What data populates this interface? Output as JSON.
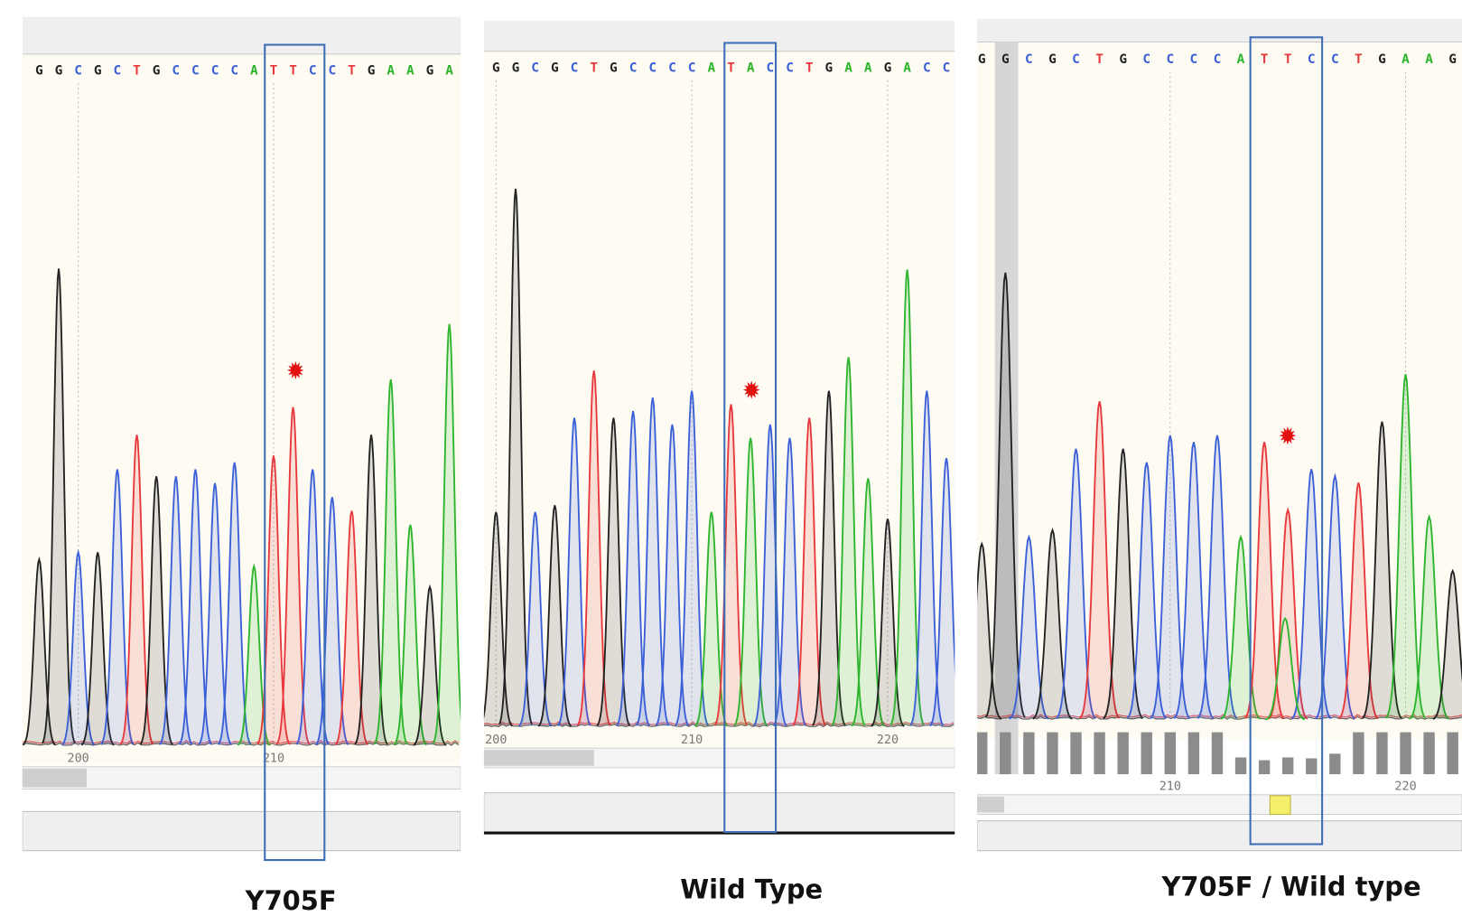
{
  "base_colors": {
    "A": "#2cb52c",
    "C": "#3b5fd8",
    "G": "#222222",
    "T": "#e8383c"
  },
  "panels": [
    {
      "label": "Y705F",
      "sequence": [
        "G",
        "G",
        "C",
        "G",
        "C",
        "T",
        "G",
        "C",
        "C",
        "C",
        "C",
        "A",
        "T",
        "T",
        "C",
        "C",
        "T",
        "G",
        "A",
        "A",
        "G",
        "A"
      ],
      "peaks": [
        27,
        69,
        28,
        28,
        40,
        45,
        39,
        39,
        40,
        38,
        41,
        26,
        42,
        49,
        40,
        36,
        34,
        45,
        53,
        32,
        23,
        61
      ],
      "positions": [
        200,
        210
      ]
    },
    {
      "label": "Wild Type",
      "sequence": [
        "G",
        "G",
        "C",
        "G",
        "C",
        "T",
        "G",
        "C",
        "C",
        "C",
        "C",
        "A",
        "T",
        "A",
        "C",
        "C",
        "T",
        "G",
        "A",
        "A",
        "G",
        "A",
        "C",
        "C"
      ],
      "peaks": [
        32,
        80,
        32,
        33,
        46,
        53,
        46,
        47,
        49,
        45,
        50,
        32,
        48,
        43,
        45,
        43,
        46,
        50,
        55,
        37,
        31,
        68,
        50,
        40
      ],
      "positions": [
        200,
        210,
        220
      ]
    },
    {
      "label": "Y705F / Wild type",
      "sequence": [
        "G",
        "G",
        "C",
        "G",
        "C",
        "T",
        "G",
        "C",
        "C",
        "C",
        "C",
        "A",
        "T",
        "T",
        "C",
        "C",
        "T",
        "G",
        "A",
        "A",
        "G"
      ],
      "peaks": [
        26,
        66,
        27,
        28,
        40,
        47,
        40,
        38,
        42,
        41,
        42,
        27,
        41,
        31,
        37,
        36,
        35,
        44,
        51,
        30,
        22
      ],
      "secondary_bases": [
        null,
        null,
        null,
        null,
        null,
        null,
        null,
        null,
        null,
        null,
        null,
        null,
        null,
        "A",
        null,
        null,
        null,
        null,
        null,
        null,
        null
      ],
      "secondary_peaks": [
        null,
        null,
        null,
        null,
        null,
        null,
        null,
        null,
        null,
        null,
        null,
        null,
        null,
        15,
        null,
        null,
        null,
        null,
        null,
        null,
        null
      ],
      "quality": [
        45,
        45,
        45,
        45,
        45,
        45,
        45,
        45,
        45,
        45,
        45,
        18,
        15,
        18,
        17,
        22,
        45,
        45,
        45,
        45,
        45
      ],
      "positions": [
        210,
        220
      ]
    }
  ]
}
